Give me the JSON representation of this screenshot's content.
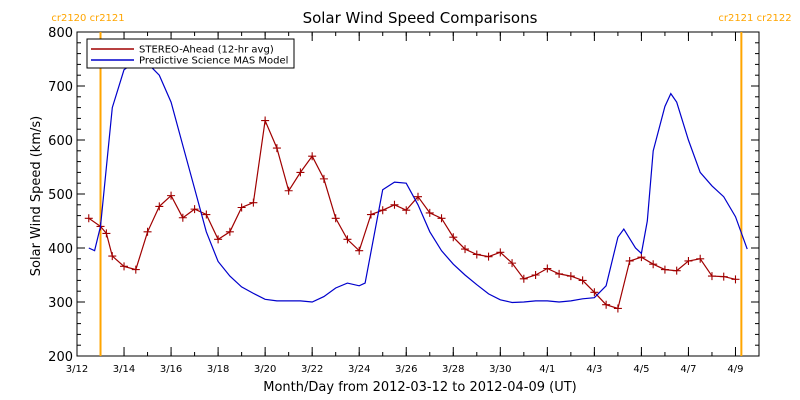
{
  "chart_data": {
    "type": "line",
    "title": "Solar Wind Speed Comparisons",
    "xlabel": "Month/Day from 2012-03-12 to 2012-04-09 (UT)",
    "ylabel": "Solar Wind Speed (km/s)",
    "ylim": [
      200,
      800
    ],
    "xlim": [
      "2012-03-12",
      "2012-04-10"
    ],
    "yticks": [
      200,
      300,
      400,
      500,
      600,
      700,
      800
    ],
    "xticks": [
      {
        "label": "3/12",
        "date": "2012-03-12"
      },
      {
        "label": "3/14",
        "date": "2012-03-14"
      },
      {
        "label": "3/16",
        "date": "2012-03-16"
      },
      {
        "label": "3/18",
        "date": "2012-03-18"
      },
      {
        "label": "3/20",
        "date": "2012-03-20"
      },
      {
        "label": "3/22",
        "date": "2012-03-22"
      },
      {
        "label": "3/24",
        "date": "2012-03-24"
      },
      {
        "label": "3/26",
        "date": "2012-03-26"
      },
      {
        "label": "3/28",
        "date": "2012-03-28"
      },
      {
        "label": "3/30",
        "date": "2012-03-30"
      },
      {
        "label": "4/1",
        "date": "2012-04-01"
      },
      {
        "label": "4/3",
        "date": "2012-04-03"
      },
      {
        "label": "4/5",
        "date": "2012-04-05"
      },
      {
        "label": "4/7",
        "date": "2012-04-07"
      },
      {
        "label": "4/9",
        "date": "2012-04-09"
      }
    ],
    "legend_position": "top-left",
    "markers": [
      {
        "date": "2012-03-13 00:00",
        "labels": [
          "cr2120",
          "cr2121"
        ],
        "side": "left"
      },
      {
        "date": "2012-04-09 06:00",
        "labels": [
          "cr2121",
          "cr2122"
        ],
        "side": "right"
      }
    ],
    "series": [
      {
        "name": "STEREO-Ahead (12-hr avg)",
        "color": "#a00000",
        "marker": "plus",
        "points": [
          [
            "2012-03-12 12:00",
            455
          ],
          [
            "2012-03-13 00:00",
            440
          ],
          [
            "2012-03-13 06:00",
            427
          ],
          [
            "2012-03-13 12:00",
            385
          ],
          [
            "2012-03-14 00:00",
            366
          ],
          [
            "2012-03-14 12:00",
            360
          ],
          [
            "2012-03-15 00:00",
            430
          ],
          [
            "2012-03-15 12:00",
            477
          ],
          [
            "2012-03-16 00:00",
            497
          ],
          [
            "2012-03-16 12:00",
            456
          ],
          [
            "2012-03-17 00:00",
            472
          ],
          [
            "2012-03-17 12:00",
            462
          ],
          [
            "2012-03-18 00:00",
            416
          ],
          [
            "2012-03-18 12:00",
            430
          ],
          [
            "2012-03-19 00:00",
            475
          ],
          [
            "2012-03-19 12:00",
            484
          ],
          [
            "2012-03-20 00:00",
            636
          ],
          [
            "2012-03-20 12:00",
            585
          ],
          [
            "2012-03-21 00:00",
            506
          ],
          [
            "2012-03-21 12:00",
            540
          ],
          [
            "2012-03-22 00:00",
            570
          ],
          [
            "2012-03-22 12:00",
            528
          ],
          [
            "2012-03-23 00:00",
            455
          ],
          [
            "2012-03-23 12:00",
            416
          ],
          [
            "2012-03-24 00:00",
            395
          ],
          [
            "2012-03-24 12:00",
            462
          ],
          [
            "2012-03-25 00:00",
            470
          ],
          [
            "2012-03-25 12:00",
            480
          ],
          [
            "2012-03-26 00:00",
            470
          ],
          [
            "2012-03-26 12:00",
            495
          ],
          [
            "2012-03-27 00:00",
            465
          ],
          [
            "2012-03-27 12:00",
            455
          ],
          [
            "2012-03-28 00:00",
            420
          ],
          [
            "2012-03-28 12:00",
            398
          ],
          [
            "2012-03-29 00:00",
            388
          ],
          [
            "2012-03-29 12:00",
            384
          ],
          [
            "2012-03-30 00:00",
            392
          ],
          [
            "2012-03-30 12:00",
            372
          ],
          [
            "2012-03-31 00:00",
            343
          ],
          [
            "2012-03-31 12:00",
            350
          ],
          [
            "2012-04-01 00:00",
            362
          ],
          [
            "2012-04-01 12:00",
            352
          ],
          [
            "2012-04-02 00:00",
            348
          ],
          [
            "2012-04-02 12:00",
            340
          ],
          [
            "2012-04-03 00:00",
            318
          ],
          [
            "2012-04-03 12:00",
            295
          ],
          [
            "2012-04-04 00:00",
            288
          ],
          [
            "2012-04-04 12:00",
            376
          ],
          [
            "2012-04-05 00:00",
            383
          ],
          [
            "2012-04-05 12:00",
            370
          ],
          [
            "2012-04-06 00:00",
            360
          ],
          [
            "2012-04-06 12:00",
            358
          ],
          [
            "2012-04-07 00:00",
            376
          ],
          [
            "2012-04-07 12:00",
            380
          ],
          [
            "2012-04-08 00:00",
            348
          ],
          [
            "2012-04-08 12:00",
            347
          ],
          [
            "2012-04-09 00:00",
            342
          ]
        ]
      },
      {
        "name": "Predictive Science MAS Model",
        "color": "#0000cc",
        "marker": "none",
        "points": [
          [
            "2012-03-12 12:00",
            400
          ],
          [
            "2012-03-12 18:00",
            395
          ],
          [
            "2012-03-13 00:00",
            440
          ],
          [
            "2012-03-13 12:00",
            660
          ],
          [
            "2012-03-14 00:00",
            730
          ],
          [
            "2012-03-14 12:00",
            745
          ],
          [
            "2012-03-15 00:00",
            742
          ],
          [
            "2012-03-15 12:00",
            720
          ],
          [
            "2012-03-16 00:00",
            670
          ],
          [
            "2012-03-16 12:00",
            590
          ],
          [
            "2012-03-17 00:00",
            510
          ],
          [
            "2012-03-17 12:00",
            430
          ],
          [
            "2012-03-18 00:00",
            375
          ],
          [
            "2012-03-18 12:00",
            348
          ],
          [
            "2012-03-19 00:00",
            328
          ],
          [
            "2012-03-19 12:00",
            316
          ],
          [
            "2012-03-20 00:00",
            305
          ],
          [
            "2012-03-20 12:00",
            302
          ],
          [
            "2012-03-21 00:00",
            302
          ],
          [
            "2012-03-21 12:00",
            302
          ],
          [
            "2012-03-22 00:00",
            300
          ],
          [
            "2012-03-22 12:00",
            310
          ],
          [
            "2012-03-23 00:00",
            326
          ],
          [
            "2012-03-23 12:00",
            335
          ],
          [
            "2012-03-24 00:00",
            330
          ],
          [
            "2012-03-24 06:00",
            335
          ],
          [
            "2012-03-24 18:00",
            450
          ],
          [
            "2012-03-25 00:00",
            508
          ],
          [
            "2012-03-25 12:00",
            522
          ],
          [
            "2012-03-26 00:00",
            520
          ],
          [
            "2012-03-26 12:00",
            480
          ],
          [
            "2012-03-27 00:00",
            430
          ],
          [
            "2012-03-27 12:00",
            395
          ],
          [
            "2012-03-28 00:00",
            370
          ],
          [
            "2012-03-28 12:00",
            350
          ],
          [
            "2012-03-29 00:00",
            332
          ],
          [
            "2012-03-29 12:00",
            315
          ],
          [
            "2012-03-30 00:00",
            304
          ],
          [
            "2012-03-30 12:00",
            299
          ],
          [
            "2012-03-31 00:00",
            300
          ],
          [
            "2012-03-31 12:00",
            302
          ],
          [
            "2012-04-01 00:00",
            302
          ],
          [
            "2012-04-01 12:00",
            300
          ],
          [
            "2012-04-02 00:00",
            302
          ],
          [
            "2012-04-02 12:00",
            306
          ],
          [
            "2012-04-03 00:00",
            308
          ],
          [
            "2012-04-03 12:00",
            330
          ],
          [
            "2012-04-04 00:00",
            420
          ],
          [
            "2012-04-04 06:00",
            435
          ],
          [
            "2012-04-04 18:00",
            400
          ],
          [
            "2012-04-05 00:00",
            390
          ],
          [
            "2012-04-05 06:00",
            450
          ],
          [
            "2012-04-05 12:00",
            580
          ],
          [
            "2012-04-06 00:00",
            662
          ],
          [
            "2012-04-06 06:00",
            686
          ],
          [
            "2012-04-06 12:00",
            670
          ],
          [
            "2012-04-07 00:00",
            600
          ],
          [
            "2012-04-07 12:00",
            540
          ],
          [
            "2012-04-08 00:00",
            515
          ],
          [
            "2012-04-08 12:00",
            495
          ],
          [
            "2012-04-09 00:00",
            458
          ],
          [
            "2012-04-09 12:00",
            398
          ]
        ]
      }
    ]
  },
  "colors": {
    "background": "#ffffff",
    "axis": "#000000",
    "marker_line": "#ffa500"
  }
}
